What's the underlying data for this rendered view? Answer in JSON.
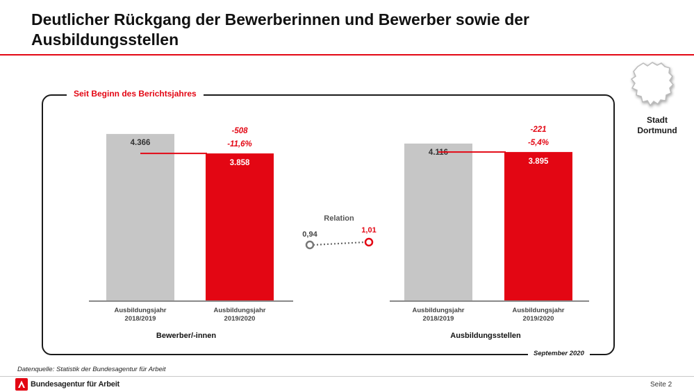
{
  "title": "Deutlicher Rückgang der Bewerberinnen und Bewerber sowie der Ausbildungsstellen",
  "frame_label": "Seit Beginn des Berichtsjahres",
  "frame_date": "September 2020",
  "region": {
    "line1": "Stadt",
    "line2": "Dortmund"
  },
  "source": "Datenquelle: Statistik der Bundesagentur für Arbeit",
  "footer": {
    "org": "Bundesagentur für Arbeit",
    "page": "Seite 2"
  },
  "colors": {
    "accent": "#e30613",
    "gray_bar": "#c6c6c6",
    "text": "#1a1a1a"
  },
  "chart_data": [
    {
      "type": "bar",
      "group_label": "Bewerber/-innen",
      "categories": [
        [
          "Ausbildungsjahr",
          "2018/2019"
        ],
        [
          "Ausbildungsjahr",
          "2019/2020"
        ]
      ],
      "values": [
        4366,
        3858
      ],
      "value_labels": [
        "4.366",
        "3.858"
      ],
      "change": {
        "absolute": "-508",
        "percent": "-11,6%"
      },
      "ylim": [
        0,
        5800
      ]
    },
    {
      "type": "bar",
      "group_label": "Ausbildungsstellen",
      "categories": [
        [
          "Ausbildungsjahr",
          "2018/2019"
        ],
        [
          "Ausbildungsjahr",
          "2019/2020"
        ]
      ],
      "values": [
        4116,
        3895
      ],
      "value_labels": [
        "4.116",
        "3.895"
      ],
      "change": {
        "absolute": "-221",
        "percent": "-5,4%"
      },
      "ylim": [
        0,
        5800
      ]
    }
  ],
  "relation": {
    "label": "Relation",
    "values": [
      0.94,
      1.01
    ],
    "value_labels": [
      "0,94",
      "1,01"
    ]
  }
}
